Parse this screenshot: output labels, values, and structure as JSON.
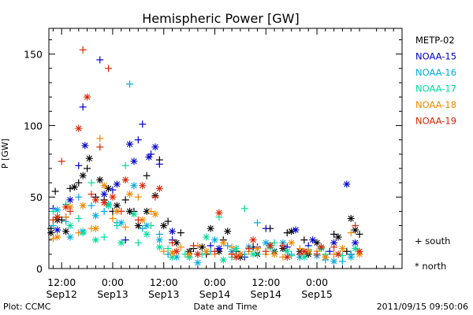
{
  "footer": {
    "left": "Plot: CCMC",
    "right": "2011/09/15 09:50:06"
  },
  "marker_legend": {
    "south": "+ south",
    "north": "* north"
  },
  "chart_data": {
    "type": "scatter",
    "title": "Hemispheric Power [GW]",
    "xlabel": "Date and Time",
    "ylabel": "P [GW]",
    "xlim_hours": [
      9,
      92
    ],
    "ylim": [
      0,
      168
    ],
    "yticks": [
      0,
      50,
      100,
      150
    ],
    "xticks": [
      {
        "h": 12,
        "line1": "12:00",
        "line2": "Sep12"
      },
      {
        "h": 24,
        "line1": "0:00",
        "line2": "Sep13"
      },
      {
        "h": 36,
        "line1": "12:00",
        "line2": "Sep13"
      },
      {
        "h": 48,
        "line1": "0:00",
        "line2": "Sep14"
      },
      {
        "h": 60,
        "line1": "12:00",
        "line2": "Sep14"
      },
      {
        "h": 72,
        "line1": "0:00",
        "line2": "Sep15"
      }
    ],
    "grid": false,
    "legend_position": "right",
    "series": [
      {
        "name": "METP-02",
        "color": "#000000",
        "south": [
          [
            9.5,
            28
          ],
          [
            10.5,
            54
          ],
          [
            12,
            34
          ],
          [
            14,
            56
          ],
          [
            16,
            60
          ],
          [
            18,
            70
          ],
          [
            20,
            50
          ],
          [
            22,
            48
          ],
          [
            24,
            40
          ],
          [
            27,
            48
          ],
          [
            29,
            40
          ],
          [
            32,
            65
          ],
          [
            35,
            76
          ],
          [
            37,
            33
          ],
          [
            40,
            25
          ],
          [
            43,
            14
          ],
          [
            46,
            10
          ],
          [
            50,
            20
          ],
          [
            53,
            12
          ],
          [
            57,
            15
          ],
          [
            61,
            28
          ],
          [
            65,
            25
          ],
          [
            69,
            20
          ],
          [
            73,
            15
          ],
          [
            76,
            24
          ],
          [
            79,
            12
          ],
          [
            80,
            10
          ],
          [
            82,
            24
          ]
        ],
        "north": [
          [
            9.5,
            25
          ],
          [
            11,
            34
          ],
          [
            13,
            26
          ],
          [
            15,
            57
          ],
          [
            17,
            65
          ],
          [
            18.5,
            77
          ],
          [
            21,
            62
          ],
          [
            23,
            56
          ],
          [
            25,
            44
          ],
          [
            28,
            40
          ],
          [
            30,
            30
          ],
          [
            32,
            40
          ],
          [
            34,
            51
          ],
          [
            36,
            30
          ],
          [
            39,
            18
          ],
          [
            42,
            12
          ],
          [
            45,
            15
          ],
          [
            47,
            28
          ],
          [
            49,
            12
          ],
          [
            51,
            26
          ],
          [
            54,
            8
          ],
          [
            58,
            10
          ],
          [
            62,
            12
          ],
          [
            64,
            14
          ],
          [
            66,
            26
          ],
          [
            68,
            12
          ],
          [
            70,
            10
          ],
          [
            72,
            18
          ],
          [
            74,
            8
          ],
          [
            77,
            22
          ],
          [
            80,
            35
          ],
          [
            81,
            27
          ]
        ]
      },
      {
        "name": "NOAA-15",
        "color": "#0000cc",
        "south": [
          [
            10,
            42
          ],
          [
            13,
            36
          ],
          [
            16,
            72
          ],
          [
            17,
            113
          ],
          [
            21,
            146
          ],
          [
            24,
            55
          ],
          [
            27,
            20
          ],
          [
            30,
            90
          ],
          [
            31,
            101
          ],
          [
            33,
            80
          ],
          [
            35,
            73
          ],
          [
            38,
            20
          ],
          [
            44,
            10
          ],
          [
            47,
            16
          ],
          [
            55,
            8
          ],
          [
            58,
            15
          ],
          [
            60,
            28
          ],
          [
            65,
            15
          ],
          [
            70,
            16
          ],
          [
            75,
            12
          ]
        ],
        "north": [
          [
            11,
            27
          ],
          [
            14,
            48
          ],
          [
            17.5,
            86
          ],
          [
            22,
            52
          ],
          [
            25,
            59
          ],
          [
            28,
            87
          ],
          [
            29,
            75
          ],
          [
            32.5,
            78
          ],
          [
            34,
            85
          ],
          [
            38,
            26
          ],
          [
            49,
            14
          ],
          [
            54,
            10
          ],
          [
            61,
            16
          ],
          [
            67,
            27
          ],
          [
            71,
            20
          ],
          [
            76,
            18
          ],
          [
            79,
            59
          ],
          [
            81,
            18
          ]
        ]
      },
      {
        "name": "NOAA-16",
        "color": "#00aadd",
        "south": [
          [
            10,
            30
          ],
          [
            13,
            33
          ],
          [
            16,
            50
          ],
          [
            19,
            44
          ],
          [
            22,
            40
          ],
          [
            25,
            32
          ],
          [
            28,
            129
          ],
          [
            31,
            28
          ],
          [
            35,
            24
          ],
          [
            37,
            10
          ],
          [
            42,
            8
          ],
          [
            47,
            12
          ],
          [
            51,
            16
          ],
          [
            55,
            10
          ],
          [
            58,
            32
          ],
          [
            62,
            12
          ],
          [
            66,
            10
          ],
          [
            70,
            13
          ],
          [
            74,
            6
          ],
          [
            78,
            5
          ],
          [
            80,
            10
          ]
        ],
        "north": [
          [
            11,
            41
          ],
          [
            14,
            22
          ],
          [
            17,
            26
          ],
          [
            20,
            37
          ],
          [
            23,
            45
          ],
          [
            26,
            32
          ],
          [
            29,
            58
          ],
          [
            32,
            30
          ],
          [
            35,
            20
          ],
          [
            39,
            8
          ],
          [
            44,
            4
          ],
          [
            48,
            20
          ],
          [
            52,
            12
          ],
          [
            56,
            15
          ],
          [
            60,
            18
          ],
          [
            64,
            18
          ],
          [
            68,
            8
          ],
          [
            72,
            9
          ],
          [
            76,
            5
          ],
          [
            80,
            8
          ]
        ]
      },
      {
        "name": "NOAA-17",
        "color": "#00dd99",
        "south": [
          [
            10,
            40
          ],
          [
            13,
            45
          ],
          [
            16,
            35
          ],
          [
            19,
            60
          ],
          [
            22,
            22
          ],
          [
            25,
            30
          ],
          [
            27,
            72
          ],
          [
            30,
            18
          ],
          [
            33,
            30
          ],
          [
            37,
            14
          ],
          [
            41,
            10
          ],
          [
            45,
            10
          ],
          [
            49,
            36
          ],
          [
            52,
            8
          ],
          [
            55,
            42
          ],
          [
            58,
            10
          ],
          [
            62,
            18
          ],
          [
            66,
            9
          ],
          [
            70,
            12
          ],
          [
            74,
            10
          ],
          [
            78,
            9
          ]
        ],
        "north": [
          [
            11,
            36
          ],
          [
            14,
            30
          ],
          [
            17,
            25
          ],
          [
            20,
            20
          ],
          [
            23,
            44
          ],
          [
            26,
            18
          ],
          [
            29,
            38
          ],
          [
            32,
            24
          ],
          [
            35,
            15
          ],
          [
            38,
            8
          ],
          [
            42,
            8
          ],
          [
            46,
            22
          ],
          [
            50,
            6
          ],
          [
            53,
            14
          ],
          [
            57,
            10
          ],
          [
            61,
            15
          ],
          [
            65,
            12
          ],
          [
            69,
            8
          ],
          [
            73,
            14
          ],
          [
            77,
            10
          ],
          [
            81,
            14
          ]
        ]
      },
      {
        "name": "NOAA-18",
        "color": "#ee8800",
        "south": [
          [
            10,
            21
          ],
          [
            13,
            36
          ],
          [
            16,
            25
          ],
          [
            19,
            28
          ],
          [
            21,
            91
          ],
          [
            24,
            35
          ],
          [
            27,
            29
          ],
          [
            30,
            50
          ],
          [
            33,
            40
          ],
          [
            36,
            12
          ],
          [
            40,
            15
          ],
          [
            44,
            16
          ],
          [
            48,
            10
          ],
          [
            52,
            15
          ],
          [
            56,
            12
          ],
          [
            60,
            10
          ],
          [
            64,
            8
          ],
          [
            68,
            14
          ],
          [
            72,
            12
          ],
          [
            76,
            10
          ],
          [
            80,
            25
          ]
        ],
        "north": [
          [
            11,
            22
          ],
          [
            14,
            43
          ],
          [
            17,
            44
          ],
          [
            20,
            28
          ],
          [
            22,
            58
          ],
          [
            25,
            40
          ],
          [
            28,
            52
          ],
          [
            31,
            34
          ],
          [
            34,
            38
          ],
          [
            38,
            11
          ],
          [
            42,
            10
          ],
          [
            46,
            12
          ],
          [
            50,
            18
          ],
          [
            54,
            10
          ],
          [
            58,
            14
          ],
          [
            62,
            10
          ],
          [
            66,
            18
          ],
          [
            70,
            12
          ],
          [
            74,
            8
          ],
          [
            78,
            14
          ],
          [
            82,
            10
          ]
        ]
      },
      {
        "name": "NOAA-19",
        "color": "#dd2200",
        "south": [
          [
            10,
            34
          ],
          [
            12,
            75
          ],
          [
            14,
            40
          ],
          [
            17,
            153
          ],
          [
            19,
            52
          ],
          [
            21,
            85
          ],
          [
            23,
            140
          ],
          [
            26,
            40
          ],
          [
            30,
            34
          ],
          [
            34,
            50
          ],
          [
            38,
            18
          ],
          [
            43,
            16
          ],
          [
            48,
            12
          ],
          [
            52,
            10
          ],
          [
            56,
            14
          ],
          [
            60,
            12
          ],
          [
            64,
            16
          ],
          [
            68,
            10
          ],
          [
            72,
            10
          ],
          [
            76,
            15
          ],
          [
            81,
            30
          ]
        ],
        "north": [
          [
            11,
            36
          ],
          [
            13,
            43
          ],
          [
            16,
            98
          ],
          [
            18,
            120
          ],
          [
            20,
            48
          ],
          [
            22,
            46
          ],
          [
            24,
            50
          ],
          [
            27,
            62
          ],
          [
            31,
            58
          ],
          [
            35,
            56
          ],
          [
            39,
            12
          ],
          [
            44,
            10
          ],
          [
            49,
            39
          ],
          [
            53,
            8
          ],
          [
            57,
            20
          ],
          [
            61,
            16
          ],
          [
            65,
            8
          ],
          [
            69,
            12
          ],
          [
            73,
            15
          ],
          [
            77,
            10
          ],
          [
            82,
            12
          ]
        ]
      }
    ]
  }
}
